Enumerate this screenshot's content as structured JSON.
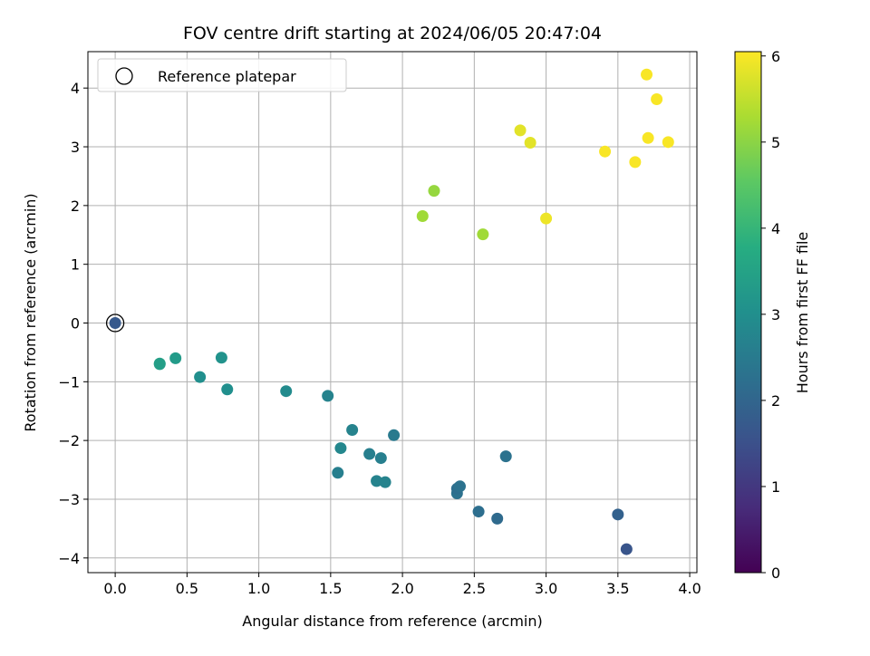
{
  "chart_data": {
    "type": "scatter",
    "title": "FOV centre drift starting at 2024/06/05 20:47:04",
    "xlabel": "Angular distance from reference (arcmin)",
    "ylabel": "Rotation from reference (arcmin)",
    "xlim": [
      -0.19,
      4.05
    ],
    "ylim": [
      -4.25,
      4.62
    ],
    "xticks": [
      "0.0",
      "0.5",
      "1.0",
      "1.5",
      "2.0",
      "2.5",
      "3.0",
      "3.5",
      "4.0"
    ],
    "xtick_values": [
      0,
      0.5,
      1.0,
      1.5,
      2.0,
      2.5,
      3.0,
      3.5,
      4.0
    ],
    "yticks": [
      "−4",
      "−3",
      "−2",
      "−1",
      "0",
      "1",
      "2",
      "3",
      "4"
    ],
    "ytick_values": [
      -4,
      -3,
      -2,
      -1,
      0,
      1,
      2,
      3,
      4
    ],
    "grid": true,
    "colormap": "viridis",
    "colorbar": {
      "label": "Hours from first FF file",
      "range": [
        0,
        6.05
      ],
      "ticks": [
        "0",
        "1",
        "2",
        "3",
        "4",
        "5",
        "6"
      ],
      "tick_values": [
        0,
        1,
        2,
        3,
        4,
        5,
        6
      ]
    },
    "legend": {
      "placement": "top-left",
      "entries": [
        "Reference platepar"
      ]
    },
    "reference_point": {
      "x": 0.0,
      "y": 0.0
    },
    "points": [
      {
        "x": 0.0,
        "y": 0.0,
        "hours": 1.7
      },
      {
        "x": 0.31,
        "y": -0.69,
        "hours": 3.5
      },
      {
        "x": 0.31,
        "y": -0.7,
        "hours": 3.4
      },
      {
        "x": 0.42,
        "y": -0.6,
        "hours": 3.3
      },
      {
        "x": 0.59,
        "y": -0.92,
        "hours": 3.0
      },
      {
        "x": 0.74,
        "y": -0.59,
        "hours": 3.1
      },
      {
        "x": 0.78,
        "y": -1.13,
        "hours": 3.0
      },
      {
        "x": 1.19,
        "y": -1.16,
        "hours": 2.9
      },
      {
        "x": 1.48,
        "y": -1.24,
        "hours": 2.7
      },
      {
        "x": 1.57,
        "y": -2.13,
        "hours": 2.8
      },
      {
        "x": 1.55,
        "y": -2.55,
        "hours": 2.6
      },
      {
        "x": 1.65,
        "y": -1.82,
        "hours": 2.7
      },
      {
        "x": 1.77,
        "y": -2.23,
        "hours": 2.6
      },
      {
        "x": 1.82,
        "y": -2.69,
        "hours": 2.7
      },
      {
        "x": 1.85,
        "y": -2.3,
        "hours": 2.6
      },
      {
        "x": 1.88,
        "y": -2.71,
        "hours": 2.7
      },
      {
        "x": 1.94,
        "y": -1.91,
        "hours": 2.5
      },
      {
        "x": 2.14,
        "y": 1.82,
        "hours": 5.2
      },
      {
        "x": 2.22,
        "y": 2.25,
        "hours": 5.1
      },
      {
        "x": 2.38,
        "y": -2.9,
        "hours": 2.3
      },
      {
        "x": 2.38,
        "y": -2.82,
        "hours": 2.2
      },
      {
        "x": 2.4,
        "y": -2.78,
        "hours": 2.3
      },
      {
        "x": 2.53,
        "y": -3.21,
        "hours": 2.2
      },
      {
        "x": 2.56,
        "y": 1.51,
        "hours": 5.2
      },
      {
        "x": 2.66,
        "y": -3.33,
        "hours": 2.1
      },
      {
        "x": 2.72,
        "y": -2.27,
        "hours": 2.3
      },
      {
        "x": 2.82,
        "y": 3.28,
        "hours": 5.8
      },
      {
        "x": 2.89,
        "y": 3.07,
        "hours": 5.8
      },
      {
        "x": 3.0,
        "y": 1.78,
        "hours": 5.9
      },
      {
        "x": 3.41,
        "y": 2.92,
        "hours": 6.0
      },
      {
        "x": 3.5,
        "y": -3.26,
        "hours": 1.9
      },
      {
        "x": 3.56,
        "y": -3.85,
        "hours": 1.6
      },
      {
        "x": 3.62,
        "y": 2.74,
        "hours": 6.0
      },
      {
        "x": 3.7,
        "y": 4.23,
        "hours": 6.0
      },
      {
        "x": 3.71,
        "y": 3.15,
        "hours": 6.0
      },
      {
        "x": 3.77,
        "y": 3.81,
        "hours": 6.0
      },
      {
        "x": 3.85,
        "y": 3.08,
        "hours": 6.0
      }
    ]
  }
}
